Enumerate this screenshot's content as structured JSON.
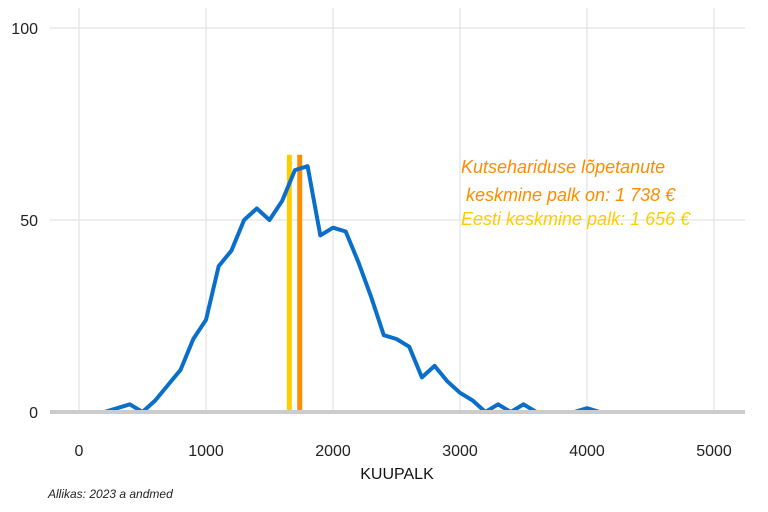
{
  "chart_data": {
    "type": "line",
    "xlabel": "KUUPALK",
    "ylabel": "",
    "xlim": [
      0,
      5250
    ],
    "ylim": [
      0,
      100
    ],
    "x_ticks": [
      0,
      1000,
      2000,
      3000,
      4000,
      5000
    ],
    "y_ticks": [
      0,
      50,
      100
    ],
    "grid": true,
    "series": [
      {
        "color": "#0a6fca",
        "points": [
          [
            0,
            0
          ],
          [
            100,
            0
          ],
          [
            200,
            0
          ],
          [
            300,
            1
          ],
          [
            400,
            2
          ],
          [
            500,
            0
          ],
          [
            600,
            3
          ],
          [
            700,
            7
          ],
          [
            800,
            11
          ],
          [
            900,
            19
          ],
          [
            1000,
            24
          ],
          [
            1100,
            38
          ],
          [
            1200,
            42
          ],
          [
            1300,
            50
          ],
          [
            1400,
            53
          ],
          [
            1500,
            50
          ],
          [
            1600,
            55
          ],
          [
            1700,
            63
          ],
          [
            1800,
            64
          ],
          [
            1900,
            46
          ],
          [
            2000,
            48
          ],
          [
            2100,
            47
          ],
          [
            2200,
            39
          ],
          [
            2300,
            30
          ],
          [
            2400,
            20
          ],
          [
            2500,
            19
          ],
          [
            2600,
            17
          ],
          [
            2700,
            9
          ],
          [
            2800,
            12
          ],
          [
            2900,
            8
          ],
          [
            3000,
            5
          ],
          [
            3100,
            3
          ],
          [
            3200,
            0
          ],
          [
            3300,
            2
          ],
          [
            3400,
            0
          ],
          [
            3500,
            2
          ],
          [
            3600,
            0
          ],
          [
            3700,
            0
          ],
          [
            3800,
            0
          ],
          [
            3900,
            0
          ],
          [
            4000,
            1
          ],
          [
            4100,
            0
          ],
          [
            4200,
            0
          ],
          [
            4500,
            0
          ],
          [
            5000,
            0
          ],
          [
            5200,
            0
          ]
        ]
      }
    ],
    "reference_lines": [
      {
        "value": 1656,
        "color": "#ffcc00",
        "top": 67
      },
      {
        "value": 1738,
        "color": "#ff8c00",
        "top": 67
      }
    ],
    "annotations": [
      {
        "text": "Kutsehariduse lõpetanute",
        "color": "#ff8c00"
      },
      {
        "text": " keskmine palk on: 1 738 €",
        "color": "#ff8c00"
      },
      {
        "text": "Eesti keskmine palk: 1 656 €",
        "color": "#ffcc00"
      }
    ]
  },
  "caption": "Allikas: 2023 a andmed"
}
